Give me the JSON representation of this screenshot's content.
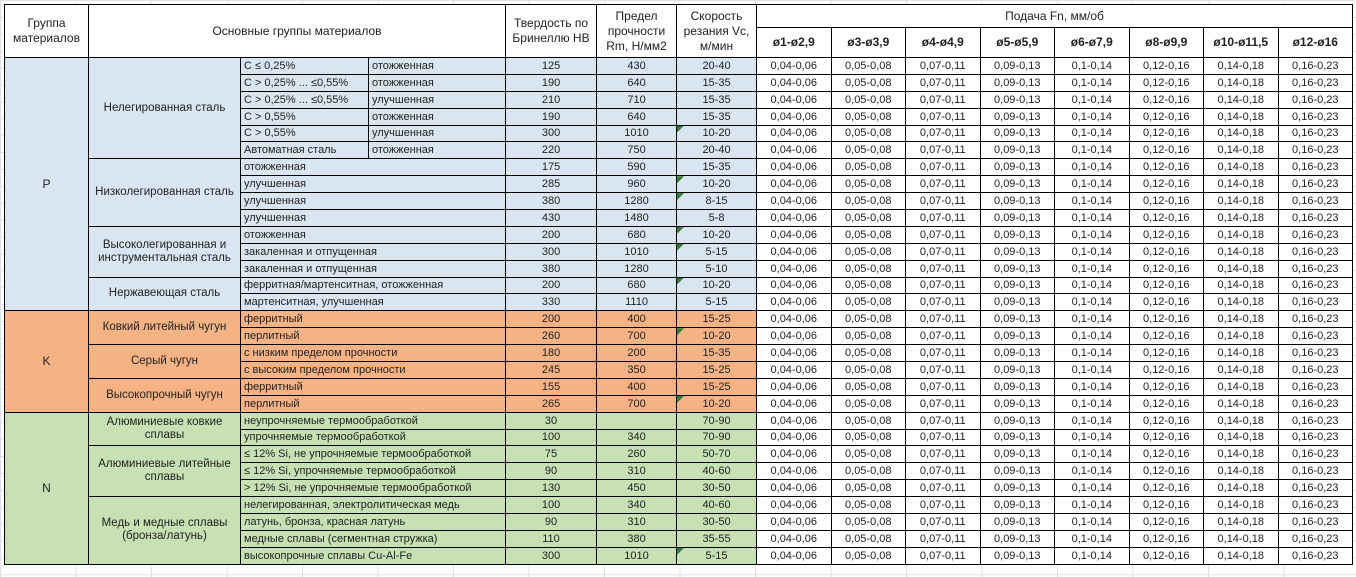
{
  "header": {
    "col_group": "Группа материалов",
    "col_main": "Основные группы материалов",
    "col_hb": "Твердость по Бринеллю HB",
    "col_rm": "Предел прочности Rm, Н/мм2",
    "col_vc": "Скорость резания Vc, м/мин",
    "feed_title": "Подача Fn, мм/об",
    "feed_cols": [
      "ø1-ø2,9",
      "ø3-ø3,9",
      "ø4-ø4,9",
      "ø5-ø5,9",
      "ø6-ø7,9",
      "ø8-ø9,9",
      "ø10-ø11,5",
      "ø12-ø16"
    ]
  },
  "feed_values": [
    "0,04-0,06",
    "0,05-0,08",
    "0,07-0,11",
    "0,09-0,13",
    "0,1-0,14",
    "0,12-0,16",
    "0,14-0,18",
    "0,16-0,23"
  ],
  "colors": {
    "group_p": "#D9E5F1",
    "group_k": "#F5B284",
    "group_n": "#C7E1B5",
    "flag_triangle": "#2e7d32",
    "grid_line": "#dbe1ea"
  },
  "groups": [
    {
      "code": "P",
      "color": "#D9E5F1",
      "subgroups": [
        {
          "name": "Нелегированная сталь",
          "rows": [
            {
              "desc1": "C ≤ 0,25%",
              "desc2": "отожженная",
              "hb": "125",
              "rm": "430",
              "vc": "20-40",
              "flag": false
            },
            {
              "desc1": "C > 0,25% ... ≤0,55%",
              "desc2": "отожженная",
              "hb": "190",
              "rm": "640",
              "vc": "15-35",
              "flag": false
            },
            {
              "desc1": "C > 0,25% ... ≤0,55%",
              "desc2": "улучшенная",
              "hb": "210",
              "rm": "710",
              "vc": "15-35",
              "flag": false
            },
            {
              "desc1": "C > 0,55%",
              "desc2": "отожженная",
              "hb": "190",
              "rm": "640",
              "vc": "15-35",
              "flag": false
            },
            {
              "desc1": "C > 0,55%",
              "desc2": "улучшенная",
              "hb": "300",
              "rm": "1010",
              "vc": "10-20",
              "flag": true
            },
            {
              "desc1": "Автоматная сталь",
              "desc2": "отожженная",
              "hb": "220",
              "rm": "750",
              "vc": "20-40",
              "flag": false
            }
          ]
        },
        {
          "name": "Низколегированная сталь",
          "rows": [
            {
              "desc": "отожженная",
              "hb": "175",
              "rm": "590",
              "vc": "15-35",
              "flag": false
            },
            {
              "desc": "улучшенная",
              "hb": "285",
              "rm": "960",
              "vc": "10-20",
              "flag": true
            },
            {
              "desc": "улучшенная",
              "hb": "380",
              "rm": "1280",
              "vc": "8-15",
              "flag": true
            },
            {
              "desc": "улучшенная",
              "hb": "430",
              "rm": "1480",
              "vc": "5-8",
              "flag": false
            }
          ]
        },
        {
          "name": "Высоколегированная и инструментальная сталь",
          "rows": [
            {
              "desc": "отожженная",
              "hb": "200",
              "rm": "680",
              "vc": "10-20",
              "flag": true
            },
            {
              "desc": "закаленная и отпущенная",
              "hb": "300",
              "rm": "1010",
              "vc": "5-15",
              "flag": true
            },
            {
              "desc": "закаленная и отпущенная",
              "hb": "380",
              "rm": "1280",
              "vc": "5-10",
              "flag": false
            }
          ]
        },
        {
          "name": "Нержавеющая сталь",
          "rows": [
            {
              "desc": "ферритная/мартенситная, отожженная",
              "hb": "200",
              "rm": "680",
              "vc": "10-20",
              "flag": true
            },
            {
              "desc": "мартенситная, улучшенная",
              "hb": "330",
              "rm": "1110",
              "vc": "5-15",
              "flag": false
            }
          ]
        }
      ]
    },
    {
      "code": "K",
      "color": "#F5B284",
      "subgroups": [
        {
          "name": "Ковкий литейный чугун",
          "rows": [
            {
              "desc": "ферритный",
              "hb": "200",
              "rm": "400",
              "vc": "15-25",
              "flag": false
            },
            {
              "desc": "перлитный",
              "hb": "260",
              "rm": "700",
              "vc": "10-20",
              "flag": true
            }
          ]
        },
        {
          "name": "Серый чугун",
          "rows": [
            {
              "desc": "с низким пределом прочности",
              "hb": "180",
              "rm": "200",
              "vc": "15-35",
              "flag": false
            },
            {
              "desc": "с высоким пределом прочности",
              "hb": "245",
              "rm": "350",
              "vc": "15-25",
              "flag": false
            }
          ]
        },
        {
          "name": "Высокопрочный чугун",
          "rows": [
            {
              "desc": "ферритный",
              "hb": "155",
              "rm": "400",
              "vc": "15-25",
              "flag": false
            },
            {
              "desc": "перлитный",
              "hb": "265",
              "rm": "700",
              "vc": "10-20",
              "flag": true
            }
          ]
        }
      ]
    },
    {
      "code": "N",
      "color": "#C7E1B5",
      "subgroups": [
        {
          "name": "Алюминиевые ковкие сплавы",
          "rows": [
            {
              "desc": "неупрочняемые термообработкой",
              "hb": "30",
              "rm": "",
              "vc": "70-90",
              "flag": false
            },
            {
              "desc": "упрочняемые термообработкой",
              "hb": "100",
              "rm": "340",
              "vc": "70-90",
              "flag": false
            }
          ]
        },
        {
          "name": "Алюминиевые литейные сплавы",
          "rows": [
            {
              "desc": "≤ 12% Si, не упрочняемые термообработкой",
              "hb": "75",
              "rm": "260",
              "vc": "50-70",
              "flag": false
            },
            {
              "desc": "≤ 12% Si, упрочняемые термообработкой",
              "hb": "90",
              "rm": "310",
              "vc": "40-60",
              "flag": false
            },
            {
              "desc": "> 12% Si, не упрочняемые термообработкой",
              "hb": "130",
              "rm": "450",
              "vc": "30-50",
              "flag": false
            }
          ]
        },
        {
          "name": "Медь и медные сплавы (бронза/латунь)",
          "rows": [
            {
              "desc": "нелегированная, электролитическая медь",
              "hb": "100",
              "rm": "340",
              "vc": "40-60",
              "flag": false
            },
            {
              "desc": "латунь, бронза, красная латунь",
              "hb": "90",
              "rm": "310",
              "vc": "30-50",
              "flag": false
            },
            {
              "desc": "медные сплавы (сегментная стружка)",
              "hb": "110",
              "rm": "380",
              "vc": "35-55",
              "flag": false
            },
            {
              "desc": "высокопрочные сплавы Cu-Al-Fe",
              "hb": "300",
              "rm": "1010",
              "vc": "5-15",
              "flag": true
            }
          ]
        }
      ]
    }
  ]
}
